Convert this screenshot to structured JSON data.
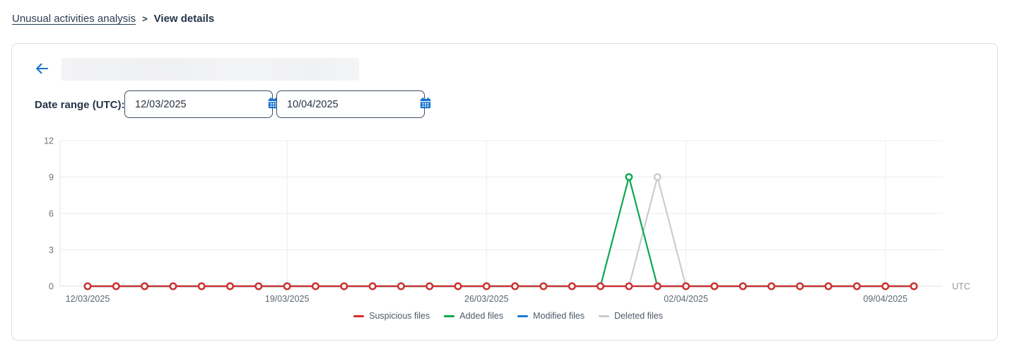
{
  "breadcrumb": {
    "link": "Unusual activities analysis",
    "separator": ">",
    "current": "View details"
  },
  "filters": {
    "label": "Date range (UTC):",
    "start_date": "12/03/2025",
    "end_date": "10/04/2025"
  },
  "colors": {
    "accent_blue": "#1673d1",
    "suspicious_red": "#d32f2f",
    "added_green": "#0ba84f",
    "modified_blue": "#1d78d2",
    "deleted_gray": "#c9cdd1"
  },
  "chart_data": {
    "type": "line",
    "x": [
      "12/03/2025",
      "13/03/2025",
      "14/03/2025",
      "15/03/2025",
      "16/03/2025",
      "17/03/2025",
      "18/03/2025",
      "19/03/2025",
      "20/03/2025",
      "21/03/2025",
      "22/03/2025",
      "23/03/2025",
      "24/03/2025",
      "25/03/2025",
      "26/03/2025",
      "27/03/2025",
      "28/03/2025",
      "29/03/2025",
      "30/03/2025",
      "31/03/2025",
      "01/04/2025",
      "02/04/2025",
      "03/04/2025",
      "04/04/2025",
      "05/04/2025",
      "06/04/2025",
      "07/04/2025",
      "08/04/2025",
      "09/04/2025",
      "10/04/2025"
    ],
    "x_tick_indices": [
      0,
      7,
      14,
      21,
      28
    ],
    "x_tick_labels": [
      "12/03/2025",
      "19/03/2025",
      "26/03/2025",
      "02/04/2025",
      "09/04/2025"
    ],
    "x_unit_label": "UTC",
    "y_ticks": [
      0,
      3,
      6,
      9,
      12
    ],
    "ylim": [
      0,
      12
    ],
    "grid": true,
    "legend_position": "bottom",
    "series": [
      {
        "name": "Suspicious files",
        "color": "#d32f2f",
        "values": [
          0,
          0,
          0,
          0,
          0,
          0,
          0,
          0,
          0,
          0,
          0,
          0,
          0,
          0,
          0,
          0,
          0,
          0,
          0,
          0,
          0,
          0,
          0,
          0,
          0,
          0,
          0,
          0,
          0,
          0
        ]
      },
      {
        "name": "Added files",
        "color": "#0ba84f",
        "values": [
          0,
          0,
          0,
          0,
          0,
          0,
          0,
          0,
          0,
          0,
          0,
          0,
          0,
          0,
          0,
          0,
          0,
          0,
          0,
          9,
          0,
          0,
          0,
          0,
          0,
          0,
          0,
          0,
          0,
          0
        ]
      },
      {
        "name": "Modified files",
        "color": "#1d78d2",
        "values": [
          0,
          0,
          0,
          0,
          0,
          0,
          0,
          0,
          0,
          0,
          0,
          0,
          0,
          0,
          0,
          0,
          0,
          0,
          0,
          0,
          0,
          0,
          0,
          0,
          0,
          0,
          0,
          0,
          0,
          0
        ]
      },
      {
        "name": "Deleted files",
        "color": "#c9cdd1",
        "values": [
          0,
          0,
          0,
          0,
          0,
          0,
          0,
          0,
          0,
          0,
          0,
          0,
          0,
          0,
          0,
          0,
          0,
          0,
          0,
          0,
          9,
          0,
          0,
          0,
          0,
          0,
          0,
          0,
          0,
          0
        ]
      }
    ]
  }
}
